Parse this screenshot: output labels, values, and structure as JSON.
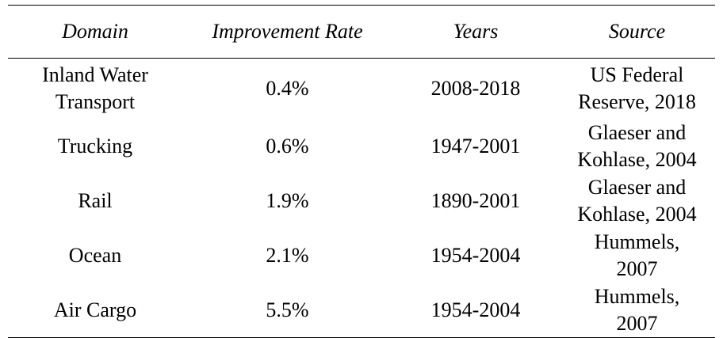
{
  "table": {
    "headers": [
      "Domain",
      "Improvement Rate",
      "Years",
      "Source"
    ],
    "rows": [
      {
        "domain": "Inland Water\nTransport",
        "rate": "0.4%",
        "years": "2008-2018",
        "source": "US Federal\nReserve, 2018"
      },
      {
        "domain": "Trucking",
        "rate": "0.6%",
        "years": "1947-2001",
        "source": "Glaeser and\nKohlase, 2004"
      },
      {
        "domain": "Rail",
        "rate": "1.9%",
        "years": "1890-2001",
        "source": "Glaeser and\nKohlase, 2004"
      },
      {
        "domain": "Ocean",
        "rate": "2.1%",
        "years": "1954-2004",
        "source": "Hummels,\n2007"
      },
      {
        "domain": "Air Cargo",
        "rate": "5.5%",
        "years": "1954-2004",
        "source": "Hummels,\n2007"
      }
    ]
  }
}
